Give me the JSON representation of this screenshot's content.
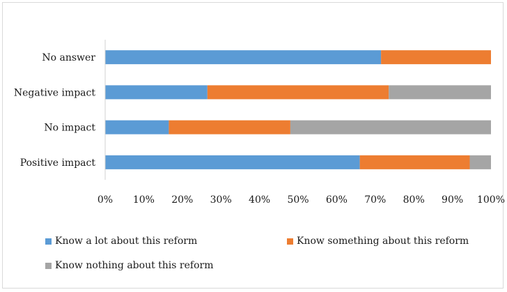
{
  "chart_data": {
    "type": "bar",
    "orientation": "horizontal",
    "stacked": "percent",
    "categories": [
      "Positive impact",
      "No impact",
      "Negative impact",
      "No answer"
    ],
    "series": [
      {
        "name": "Know a lot about this reform",
        "color": "#5b9bd5",
        "values": [
          66,
          16.5,
          26.5,
          71.5
        ]
      },
      {
        "name": "Know something about this reform",
        "color": "#ed7d31",
        "values": [
          28.5,
          31.5,
          47,
          28.5
        ]
      },
      {
        "name": "Know nothing about this reform",
        "color": "#a5a5a5",
        "values": [
          5.5,
          52,
          26.5,
          0
        ]
      }
    ],
    "x_ticks": [
      "0%",
      "10%",
      "20%",
      "30%",
      "40%",
      "50%",
      "60%",
      "70%",
      "80%",
      "90%",
      "100%"
    ],
    "xlim": [
      0,
      100
    ],
    "grid": false,
    "legend_position": "bottom"
  }
}
